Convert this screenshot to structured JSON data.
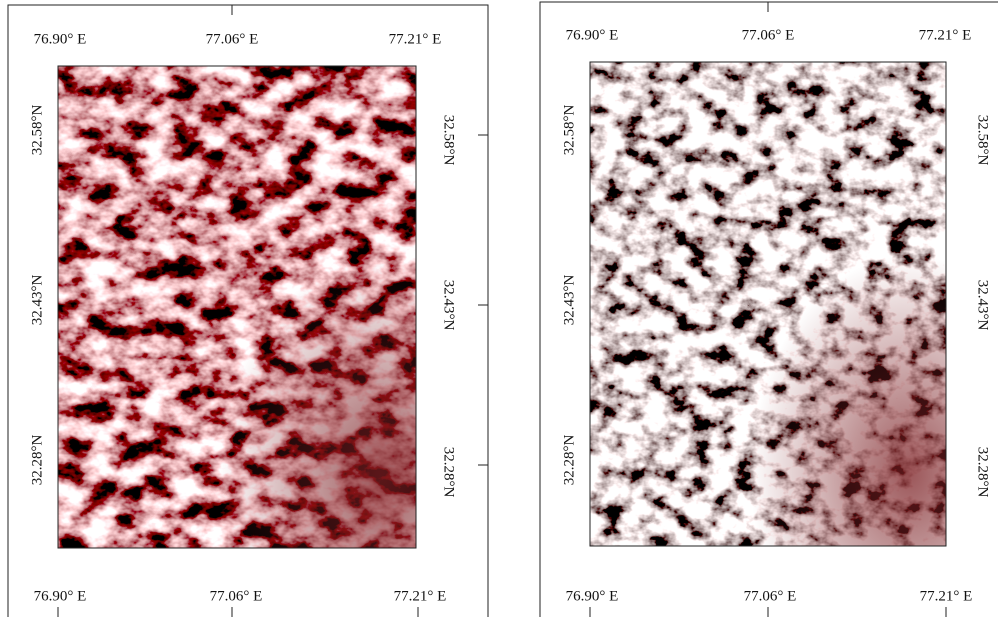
{
  "panels": [
    {
      "top_labels": [
        "76.90° E",
        "77.06° E",
        "77.21° E"
      ],
      "bottom_labels": [
        "76.90° E",
        "77.06° E",
        "77.21° E"
      ],
      "left_labels": [
        "32.58°N",
        "32.43°N",
        "32.28°N"
      ],
      "right_labels": [
        "32.58°N",
        "32.43°N",
        "32.28°N"
      ]
    },
    {
      "top_labels": [
        "76.90° E",
        "77.06° E",
        "77.21° E"
      ],
      "bottom_labels": [
        "76.90° E",
        "77.06° E",
        "77.21° E"
      ],
      "left_labels": [
        "32.58°N",
        "32.43°N",
        "32.28°N"
      ],
      "right_labels": [
        "32.58°N",
        "32.43°N",
        "32.28°N"
      ]
    }
  ]
}
